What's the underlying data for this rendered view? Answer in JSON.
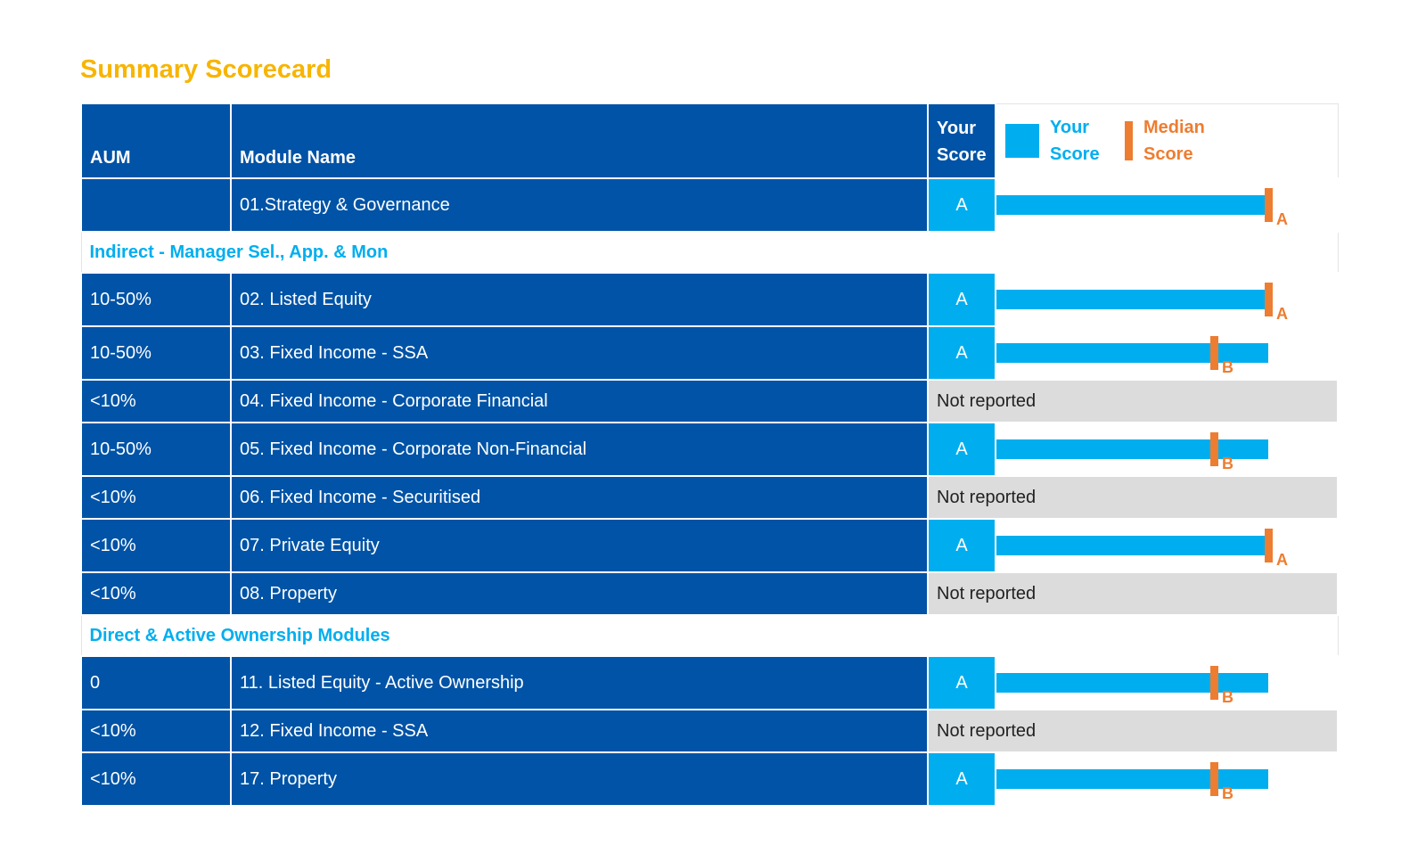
{
  "title": "Summary Scorecard",
  "header": {
    "aum": "AUM",
    "module": "Module Name",
    "score_line1": "Your",
    "score_line2": "Score"
  },
  "legend": {
    "your_line1": "Your",
    "your_line2": "Score",
    "median_line1": "Median",
    "median_line2": "Score"
  },
  "colors": {
    "title": "#F7B500",
    "row_blue": "#0053A6",
    "score_cyan": "#00AEEF",
    "median_orange": "#ED7D31",
    "not_reported_grey": "#DCDCDC"
  },
  "rows": [
    {
      "aum": "",
      "module": "01.Strategy & Governance",
      "score": "A",
      "bar_fraction": 1.0,
      "median_fraction": 1.0,
      "median_grade": "A"
    },
    {
      "section": "Indirect - Manager Sel., App. & Mon"
    },
    {
      "aum": "10-50%",
      "module": "02. Listed Equity",
      "score": "A",
      "bar_fraction": 1.0,
      "median_fraction": 1.0,
      "median_grade": "A"
    },
    {
      "aum": "10-50%",
      "module": "03. Fixed Income - SSA",
      "score": "A",
      "bar_fraction": 1.0,
      "median_fraction": 0.8,
      "median_grade": "B"
    },
    {
      "aum": "<10%",
      "module": "04. Fixed Income - Corporate Financial",
      "not_reported": "Not reported"
    },
    {
      "aum": "10-50%",
      "module": "05. Fixed Income - Corporate Non-Financial",
      "score": "A",
      "bar_fraction": 1.0,
      "median_fraction": 0.8,
      "median_grade": "B"
    },
    {
      "aum": "<10%",
      "module": "06. Fixed Income - Securitised",
      "not_reported": "Not reported"
    },
    {
      "aum": "<10%",
      "module": "07. Private Equity",
      "score": "A",
      "bar_fraction": 1.0,
      "median_fraction": 1.0,
      "median_grade": "A"
    },
    {
      "aum": "<10%",
      "module": "08. Property",
      "not_reported": "Not reported"
    },
    {
      "section": "Direct & Active Ownership Modules"
    },
    {
      "aum": "0",
      "module": "11. Listed Equity - Active Ownership",
      "score": "A",
      "bar_fraction": 1.0,
      "median_fraction": 0.8,
      "median_grade": "B"
    },
    {
      "aum": "<10%",
      "module": "12. Fixed Income - SSA",
      "not_reported": "Not reported"
    },
    {
      "aum": "<10%",
      "module": "17. Property",
      "score": "A",
      "bar_fraction": 1.0,
      "median_fraction": 0.8,
      "median_grade": "B"
    }
  ]
}
